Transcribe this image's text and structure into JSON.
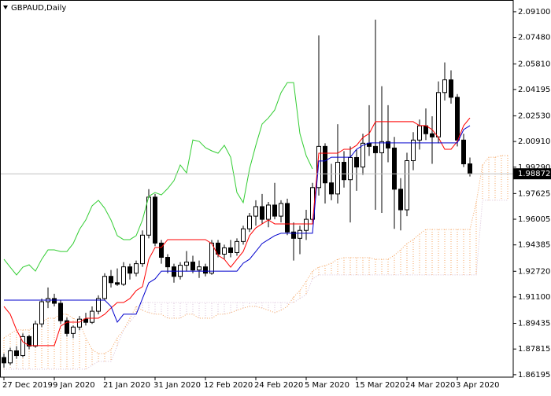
{
  "chart_data": {
    "type": "candlestick",
    "title": "GBPAUD,Daily",
    "categories": [
      "27 Dec 2019",
      null,
      null,
      null,
      null,
      null,
      null,
      null,
      "9 Jan 2020",
      null,
      null,
      null,
      null,
      null,
      null,
      null,
      "21 Jan 2020",
      null,
      null,
      null,
      null,
      null,
      null,
      null,
      "31 Jan 2020",
      null,
      null,
      null,
      null,
      null,
      null,
      null,
      "12 Feb 2020",
      null,
      null,
      null,
      null,
      null,
      null,
      null,
      "24 Feb 2020",
      null,
      null,
      null,
      null,
      null,
      null,
      null,
      "5 Mar 2020",
      null,
      null,
      null,
      null,
      null,
      null,
      null,
      "15 Mar 2020",
      null,
      null,
      null,
      null,
      null,
      null,
      null,
      "24 Mar 2020",
      null,
      null,
      null,
      null,
      null,
      null,
      null,
      "3 Apr 2020",
      null,
      null,
      null,
      null,
      null,
      null,
      null,
      null
    ],
    "open": [
      1.8728,
      1.8694,
      1.877,
      1.874,
      1.886,
      1.88,
      1.894,
      1.908,
      1.91,
      1.907,
      1.896,
      1.888,
      1.892,
      1.897,
      1.895,
      1.902,
      1.91,
      1.924,
      1.92,
      1.919,
      1.93,
      1.926,
      1.932,
      1.95,
      1.974,
      1.945,
      1.936,
      1.93,
      1.924,
      1.931,
      1.933,
      1.928,
      1.93,
      1.926,
      1.945,
      1.938,
      1.942,
      1.939,
      1.946,
      1.954,
      1.962,
      1.968,
      1.96,
      1.969,
      1.962,
      1.97,
      1.952,
      1.948,
      1.953,
      1.96,
      1.98,
      2.006,
      1.983,
      1.976,
      1.996,
      1.985,
      1.999,
      1.993,
      2.008,
      2.006,
      2.002,
      2.009,
      2.005,
      1.979,
      1.966,
      1.997,
      2.01,
      2.019,
      2.014,
      2.012,
      2.04,
      2.048,
      2.037,
      2.01,
      1.995,
      null,
      null,
      null,
      null,
      null,
      null
    ],
    "high": [
      1.8753,
      1.879,
      1.88,
      1.888,
      1.887,
      1.896,
      1.91,
      1.917,
      1.913,
      1.909,
      1.898,
      1.893,
      1.899,
      1.901,
      1.905,
      1.912,
      1.926,
      1.928,
      1.929,
      1.933,
      1.932,
      1.934,
      1.953,
      1.979,
      1.976,
      1.947,
      1.938,
      1.932,
      1.933,
      1.94,
      1.937,
      1.934,
      1.932,
      1.947,
      1.947,
      1.944,
      1.947,
      1.948,
      1.956,
      1.964,
      1.972,
      1.976,
      1.971,
      1.983,
      1.972,
      1.973,
      1.958,
      1.956,
      1.966,
      1.983,
      2.076,
      2.008,
      1.995,
      2.02,
      2.003,
      2.006,
      2.004,
      2.014,
      2.032,
      2.086,
      2.044,
      2.032,
      2.012,
      1.986,
      2.002,
      2.015,
      2.023,
      2.03,
      2.025,
      2.047,
      2.059,
      2.054,
      2.039,
      2.014,
      1.999,
      null,
      null,
      null,
      null,
      null,
      null
    ],
    "low": [
      1.8664,
      1.868,
      1.872,
      1.873,
      1.878,
      1.879,
      1.892,
      1.904,
      1.905,
      1.894,
      1.886,
      1.885,
      1.89,
      1.893,
      1.894,
      1.9,
      1.909,
      1.917,
      1.918,
      1.918,
      1.922,
      1.924,
      1.93,
      1.948,
      1.943,
      1.932,
      1.926,
      1.92,
      1.922,
      1.927,
      1.926,
      1.923,
      1.924,
      1.925,
      1.936,
      1.935,
      1.936,
      1.937,
      1.944,
      1.952,
      1.956,
      1.957,
      1.955,
      1.96,
      1.958,
      1.95,
      1.934,
      1.938,
      1.947,
      1.958,
      1.975,
      1.97,
      1.972,
      1.97,
      1.98,
      1.958,
      1.978,
      1.988,
      2.0,
      1.966,
      1.964,
      1.996,
      1.954,
      1.953,
      1.962,
      1.991,
      2.004,
      2.01,
      1.995,
      2.008,
      2.035,
      2.033,
      2.006,
      1.993,
      1.987,
      null,
      null,
      null,
      null,
      null,
      null
    ],
    "close": [
      1.8694,
      1.877,
      1.874,
      1.886,
      1.88,
      1.894,
      1.908,
      1.91,
      1.907,
      1.896,
      1.888,
      1.892,
      1.897,
      1.895,
      1.902,
      1.91,
      1.924,
      1.92,
      1.919,
      1.93,
      1.926,
      1.932,
      1.95,
      1.974,
      1.945,
      1.936,
      1.93,
      1.924,
      1.931,
      1.933,
      1.928,
      1.93,
      1.926,
      1.945,
      1.938,
      1.942,
      1.939,
      1.946,
      1.954,
      1.962,
      1.968,
      1.96,
      1.969,
      1.962,
      1.97,
      1.952,
      1.948,
      1.953,
      1.96,
      1.98,
      2.006,
      1.983,
      1.976,
      1.996,
      1.985,
      1.999,
      1.993,
      2.008,
      2.006,
      2.002,
      2.009,
      2.005,
      1.979,
      1.966,
      1.997,
      2.01,
      2.019,
      2.014,
      2.012,
      2.04,
      2.048,
      2.037,
      2.01,
      1.995,
      1.98872,
      null,
      null,
      null,
      null,
      null,
      null
    ],
    "up_color": "#ffffff",
    "down_color": "#000000",
    "tenkan_sen": {
      "color": "#ff0000",
      "values": [
        1.905,
        1.9001,
        1.8902,
        1.8827,
        1.8803,
        1.8803,
        1.8803,
        1.8803,
        1.8803,
        1.8926,
        1.8951,
        1.8951,
        1.8951,
        1.8976,
        1.8976,
        1.8976,
        1.9001,
        1.904,
        1.9075,
        1.9075,
        1.91,
        1.915,
        1.9175,
        1.9348,
        1.9422,
        1.9422,
        1.9472,
        1.9472,
        1.9472,
        1.9472,
        1.9472,
        1.9472,
        1.9472,
        1.9447,
        1.9373,
        1.9348,
        1.9298,
        1.9348,
        1.9397,
        1.9497,
        1.9546,
        1.9571,
        1.9596,
        1.9571,
        1.9571,
        1.9571,
        1.9571,
        1.9571,
        1.9571,
        1.9571,
        2.0017,
        2.0017,
        2.0017,
        2.0017,
        2.0042,
        2.0042,
        2.0067,
        2.0116,
        2.0141,
        2.0216,
        2.0216,
        2.0216,
        2.0216,
        2.0216,
        2.0216,
        2.0216,
        2.0191,
        2.0191,
        2.0166,
        2.0116,
        2.0042,
        2.0042,
        2.0092,
        2.0191,
        2.024,
        null,
        null,
        null,
        null,
        null,
        null
      ]
    },
    "kijun_sen": {
      "color": "#0000cd",
      "values": [
        1.909,
        1.909,
        1.909,
        1.909,
        1.909,
        1.909,
        1.909,
        1.909,
        1.909,
        1.909,
        1.909,
        1.909,
        1.909,
        1.909,
        1.909,
        1.909,
        1.909,
        1.905,
        1.8951,
        1.9001,
        1.9001,
        1.9001,
        1.91,
        1.9199,
        1.9224,
        1.9273,
        1.9273,
        1.9273,
        1.9273,
        1.9273,
        1.9273,
        1.9273,
        1.9273,
        1.9273,
        1.9273,
        1.9273,
        1.9273,
        1.9273,
        1.9323,
        1.9348,
        1.9397,
        1.9447,
        1.9472,
        1.9497,
        1.9512,
        1.9512,
        1.9512,
        1.9512,
        1.9512,
        1.9512,
        1.9968,
        1.9968,
        1.9992,
        1.9992,
        1.9992,
        1.9992,
        2.0042,
        2.0067,
        2.0082,
        2.0082,
        2.0082,
        2.0082,
        2.0082,
        2.0082,
        2.0082,
        2.0082,
        2.0082,
        2.0082,
        2.0082,
        2.0082,
        2.0082,
        2.0082,
        2.0082,
        2.0166,
        2.0191,
        null,
        null,
        null,
        null,
        null,
        null
      ]
    },
    "chikou_span": {
      "color": "#32cd32",
      "values": [
        1.9348,
        1.9298,
        1.9249,
        1.9298,
        1.9313,
        1.9273,
        1.9348,
        1.9407,
        1.9407,
        1.9397,
        1.9397,
        1.9447,
        1.9536,
        1.9596,
        1.9685,
        1.972,
        1.967,
        1.9596,
        1.9497,
        1.9472,
        1.9472,
        1.9497,
        1.9596,
        1.9745,
        1.9769,
        1.9754,
        1.9794,
        1.9844,
        1.9943,
        1.9893,
        2.0101,
        2.0092,
        2.0052,
        2.0032,
        2.0017,
        2.0067,
        1.9992,
        1.9769,
        1.9705,
        1.9918,
        2.0067,
        2.0201,
        2.024,
        2.029,
        2.0399,
        2.0463,
        2.0463,
        2.0141,
        2.0002,
        1.9918,
        null,
        null,
        null,
        null,
        null,
        null,
        null,
        null,
        null,
        null,
        null,
        null,
        null,
        null,
        null,
        null,
        null,
        null,
        null,
        null,
        null,
        null,
        null,
        null,
        null,
        null,
        null,
        null,
        null,
        null,
        null
      ]
    },
    "senkou_span_a": {
      "color": "#f4a460",
      "values": [
        1.8852,
        1.8877,
        1.8902,
        1.8902,
        1.8902,
        1.8926,
        1.8951,
        1.8976,
        1.8976,
        1.9001,
        1.9001,
        1.8976,
        1.8951,
        1.8852,
        1.8778,
        1.8753,
        1.8753,
        1.8778,
        1.8852,
        1.8902,
        1.8976,
        1.905,
        1.9026,
        1.9011,
        1.9001,
        1.9001,
        1.8976,
        1.8976,
        1.8976,
        1.9001,
        1.9001,
        1.8976,
        1.8976,
        1.8976,
        1.9001,
        1.9001,
        1.9011,
        1.9026,
        1.904,
        1.905,
        1.905,
        1.904,
        1.9026,
        1.9011,
        1.9026,
        1.905,
        1.911,
        1.915,
        1.9209,
        1.9273,
        1.9298,
        1.9308,
        1.9323,
        1.9348,
        1.9358,
        1.9358,
        1.9358,
        1.9358,
        1.9358,
        1.9348,
        1.9348,
        1.9348,
        1.9373,
        1.9407,
        1.9447,
        1.9472,
        1.9507,
        1.9536,
        1.9536,
        1.9536,
        1.9536,
        1.9536,
        1.9536,
        1.9536,
        1.9536,
        1.9705,
        1.9943,
        1.9992,
        1.9992,
        2.0002,
        2.0002
      ]
    },
    "senkou_span_b": {
      "color": "#d8bfd8",
      "values": [
        1.8654,
        1.8654,
        1.8654,
        1.8654,
        1.8654,
        1.8654,
        1.8654,
        1.8654,
        1.8654,
        1.8654,
        1.8654,
        1.8654,
        1.8654,
        1.8654,
        1.8679,
        1.8703,
        1.8703,
        1.8703,
        1.8803,
        1.8902,
        1.8951,
        1.9001,
        1.9075,
        1.9075,
        1.9075,
        1.9075,
        1.9075,
        1.9075,
        1.9075,
        1.9075,
        1.9075,
        1.9075,
        1.9075,
        1.9075,
        1.9075,
        1.9075,
        1.9075,
        1.9075,
        1.9075,
        1.9075,
        1.9075,
        1.9075,
        1.9075,
        1.9075,
        1.9075,
        1.9075,
        1.9075,
        1.91,
        1.9125,
        1.9224,
        1.9249,
        1.9249,
        1.9249,
        1.9249,
        1.9249,
        1.9249,
        1.9249,
        1.9249,
        1.9249,
        1.9249,
        1.9249,
        1.9249,
        1.9249,
        1.9249,
        1.9249,
        1.9249,
        1.9249,
        1.9249,
        1.9249,
        1.9249,
        1.9249,
        1.9249,
        1.9249,
        1.9249,
        1.9249,
        1.9249,
        1.972,
        1.972,
        1.972,
        1.972,
        1.972
      ]
    },
    "last_price": 1.98872,
    "ylim": [
      1.8604,
      2.0984
    ],
    "yticks": [
      {
        "value": 2.091,
        "label": "2.09100"
      },
      {
        "value": 2.0748,
        "label": "2.07480"
      },
      {
        "value": 2.0581,
        "label": "2.05810"
      },
      2.04195,
      {
        "value": 2.0253,
        "label": "2.02530"
      },
      {
        "value": 2.0091,
        "label": "2.00910"
      },
      {
        "value": 1.9929,
        "label": "1.99290"
      },
      1.97625,
      1.96005,
      1.94385,
      {
        "value": 1.9272,
        "label": "1.92720"
      },
      {
        "value": 1.911,
        "label": "1.91100"
      },
      1.89435,
      1.87815,
      1.86195
    ],
    "grid": false
  }
}
